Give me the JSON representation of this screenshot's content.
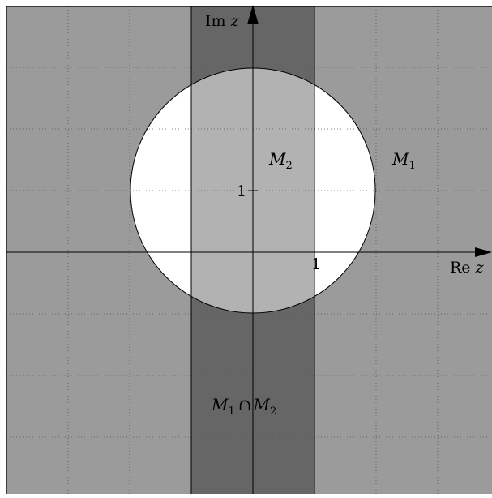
{
  "figure": {
    "axes": {
      "x_label_prefix": "Re",
      "x_label_var": "z",
      "y_label_prefix": "Im",
      "y_label_var": "z",
      "x_tick_label": "1",
      "y_tick_label": "1",
      "x_range": [
        -4,
        4
      ],
      "y_range": [
        -4,
        4
      ],
      "grid": true,
      "grid_style": "dotted"
    },
    "regions": {
      "m1_label": "M",
      "m1_sub": "1",
      "m2_label": "M",
      "m2_sub": "2",
      "intersection_label_a": "M",
      "intersection_sub_a": "1",
      "intersection_op": "∩",
      "intersection_label_b": "M",
      "intersection_sub_b": "2"
    },
    "circle": {
      "center_re": 0,
      "center_im": 1,
      "radius": 2
    },
    "strip": {
      "re_min": -1,
      "re_max": 1
    },
    "colors": {
      "outside": "#9b9b9b",
      "strip_outside_circle": "#666666",
      "strip_inside_circle": "#b2b2b2",
      "circle_fill": "#ffffff",
      "lines": "#000000"
    }
  }
}
